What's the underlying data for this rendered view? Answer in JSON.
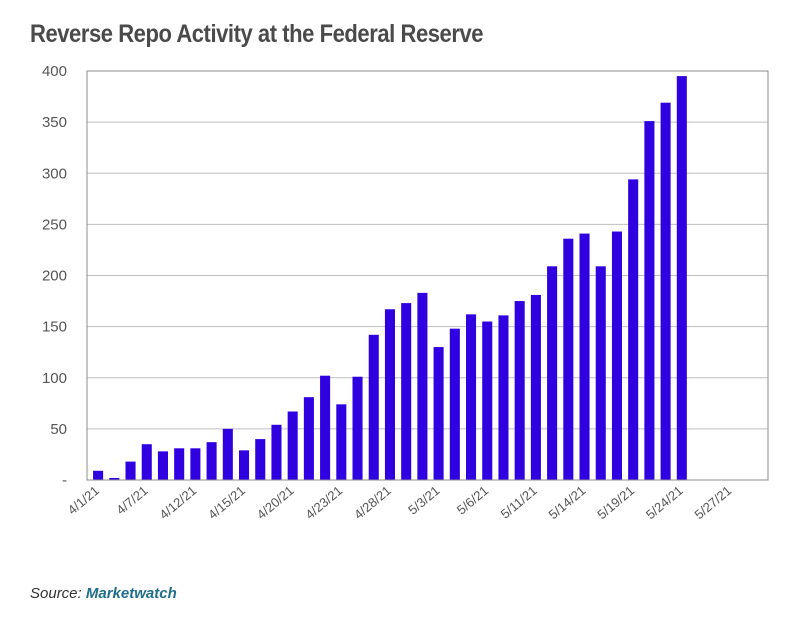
{
  "title": "Reverse Repo Activity at the Federal Reserve",
  "source": {
    "label": "Source: ",
    "name": "Marketwatch"
  },
  "colors": {
    "bar": "#2f00e0",
    "grid": "#bfbfbf",
    "axis": "#8c8c8c"
  },
  "chart_data": {
    "type": "bar",
    "title": "Reverse Repo Activity at the Federal Reserve",
    "xlabel": "",
    "ylabel": "",
    "ylim": [
      0,
      400
    ],
    "yticks": [
      0,
      50,
      100,
      150,
      200,
      250,
      300,
      350,
      400
    ],
    "ytick_labels": [
      "-",
      "50",
      "100",
      "150",
      "200",
      "250",
      "300",
      "350",
      "400"
    ],
    "grid": true,
    "x_tick_labels": [
      "4/1/21",
      "4/7/21",
      "4/12/21",
      "4/15/21",
      "4/20/21",
      "4/23/21",
      "4/28/21",
      "5/3/21",
      "5/6/21",
      "5/11/21",
      "5/14/21",
      "5/19/21",
      "5/24/21",
      "5/27/21"
    ],
    "values": [
      9,
      2,
      18,
      35,
      28,
      31,
      31,
      37,
      50,
      29,
      40,
      54,
      67,
      81,
      102,
      74,
      101,
      142,
      167,
      173,
      183,
      130,
      148,
      162,
      155,
      161,
      175,
      181,
      209,
      236,
      241,
      209,
      243,
      294,
      351,
      369,
      395,
      0,
      0,
      0,
      0,
      0
    ]
  }
}
